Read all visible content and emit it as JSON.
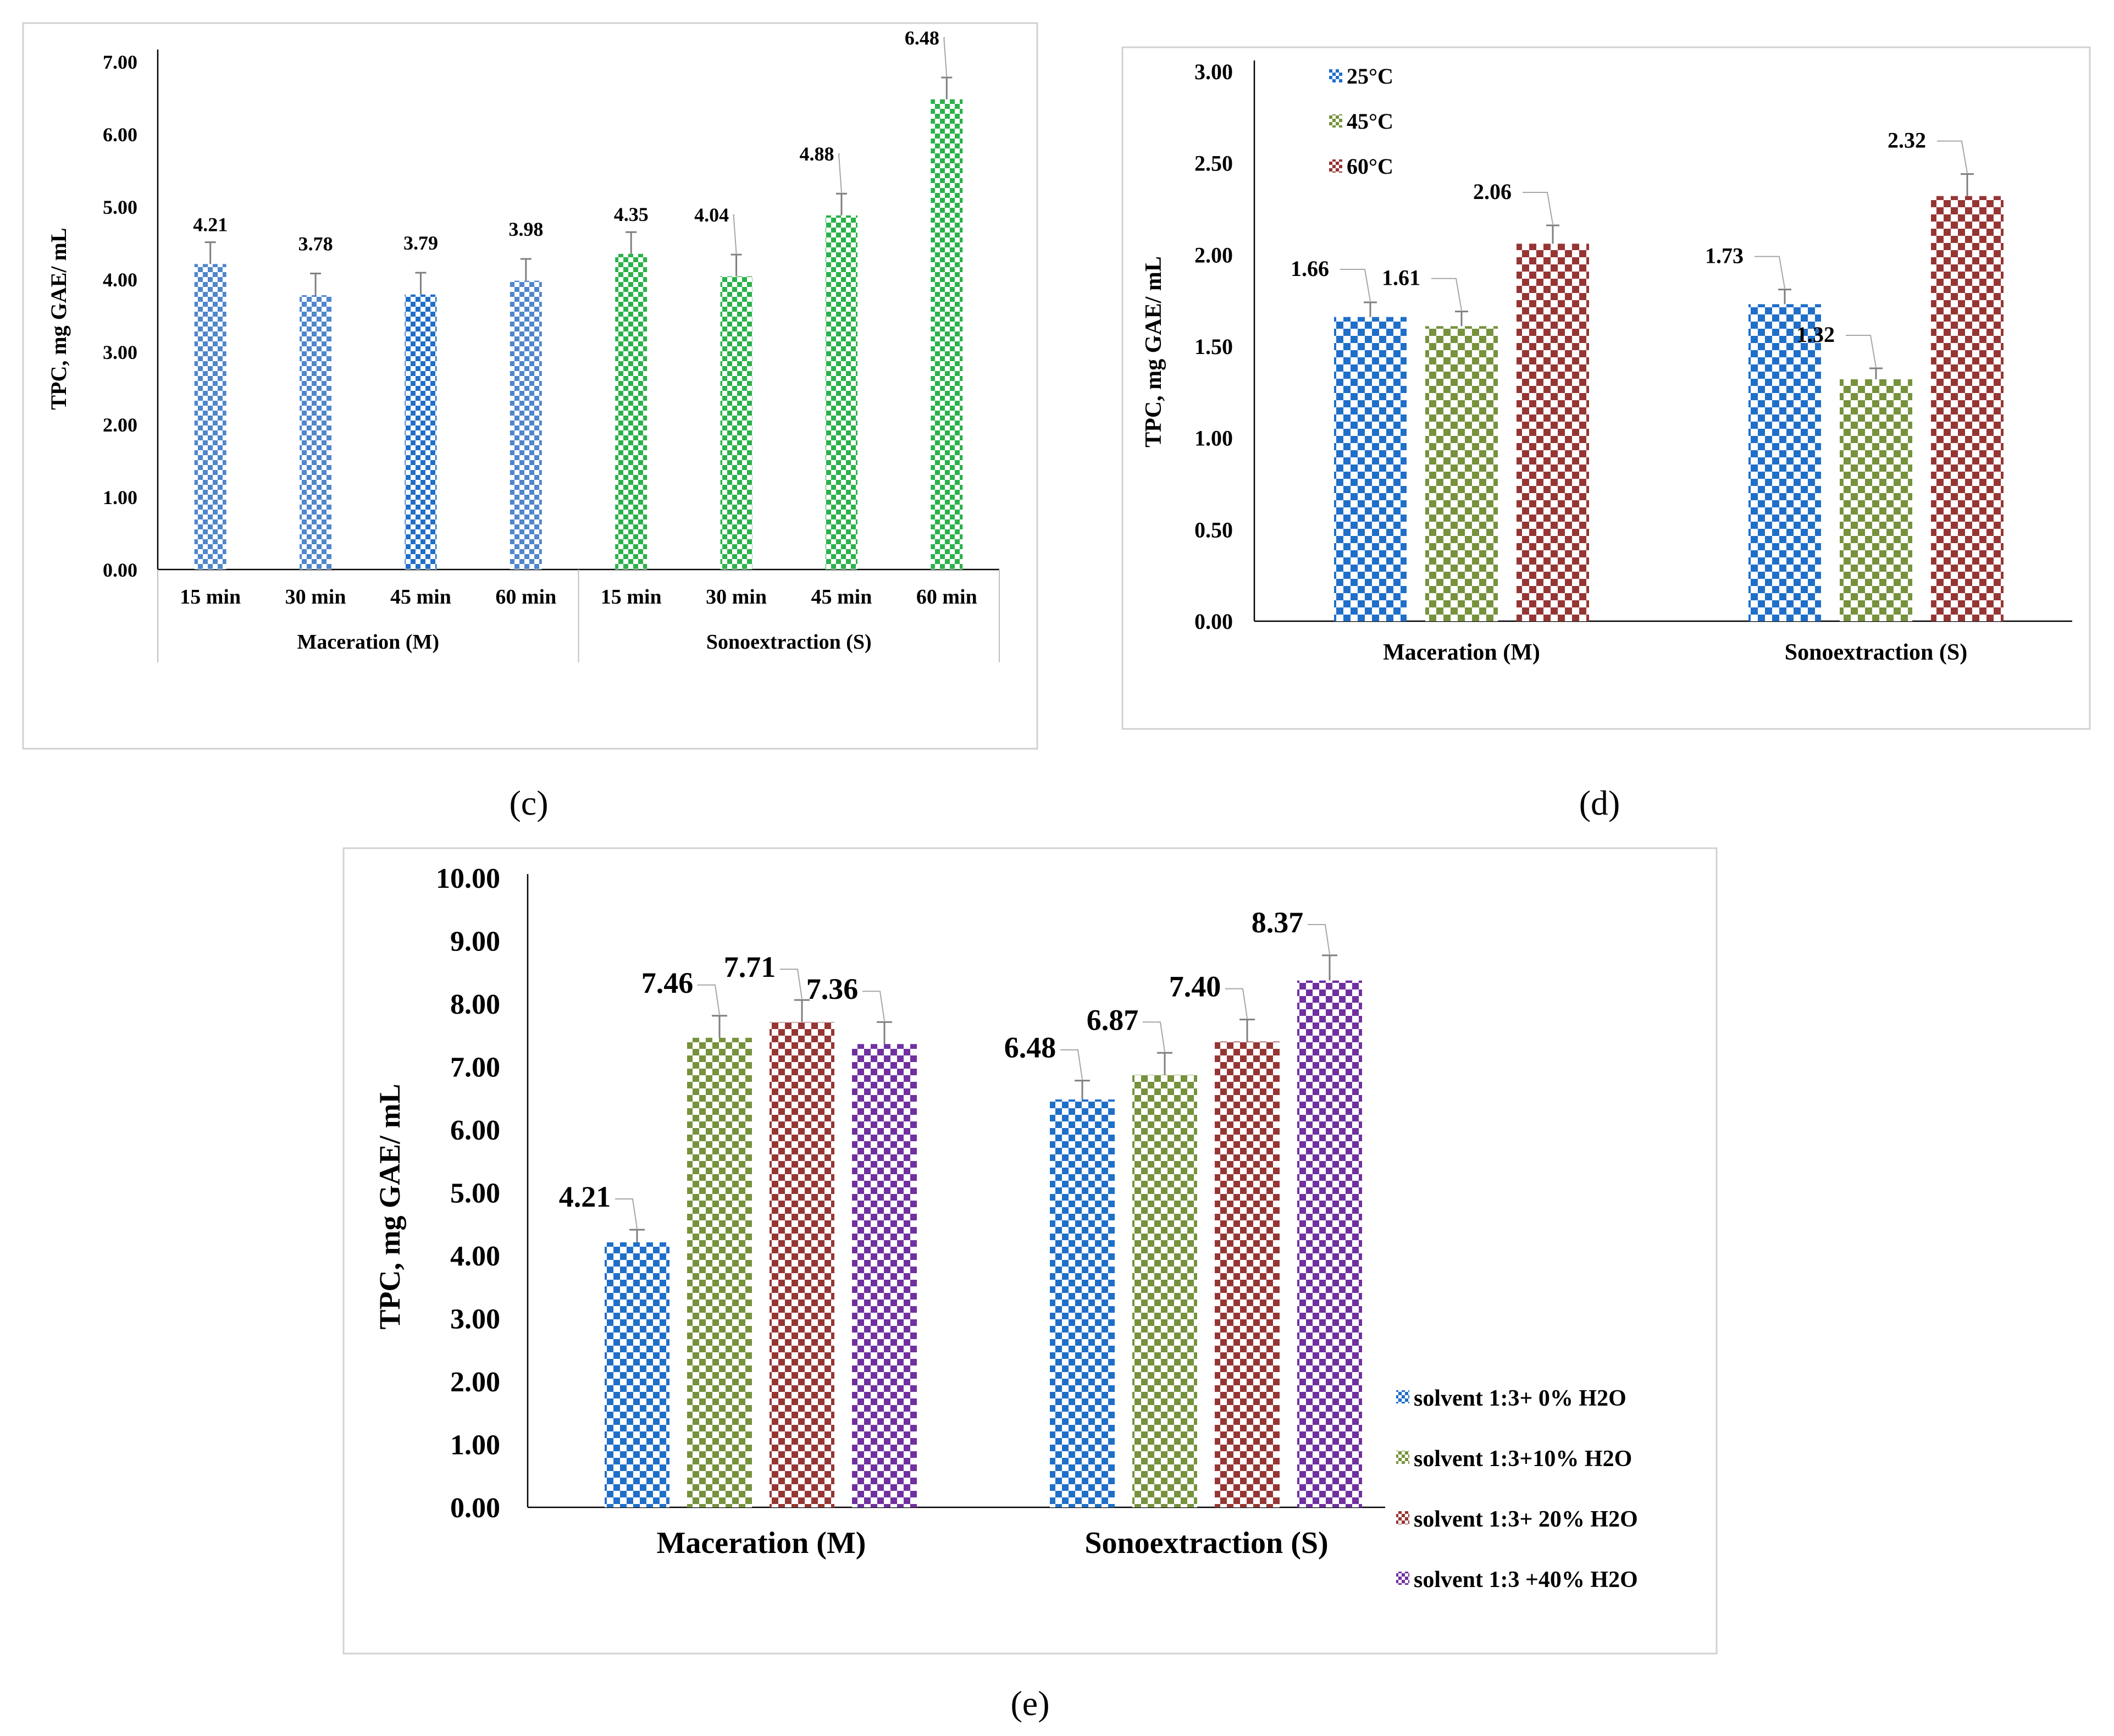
{
  "figure": {
    "captions": [
      "(c)",
      "(d)",
      "(e)"
    ]
  },
  "colors": {
    "blue": "#1f6fc9",
    "green": "#2ab24a",
    "olive": "#76923c",
    "red": "#963634",
    "purple": "#7030a0",
    "lightblue": "#4f86cc"
  },
  "chart_data": [
    {
      "panel": "c",
      "type": "bar",
      "title": "",
      "ylabel": "TPC, mg GAE/ mL",
      "ylim": [
        0,
        7
      ],
      "yticks": [
        "0.00",
        "1.00",
        "2.00",
        "3.00",
        "4.00",
        "5.00",
        "6.00",
        "7.00"
      ],
      "groups": [
        {
          "name": "Maceration (M)",
          "categories": [
            "15 min",
            "30 min",
            "45 min",
            "60 min"
          ],
          "values": [
            4.21,
            3.78,
            3.79,
            3.98
          ],
          "labels": [
            "4.21",
            "3.78",
            "3.79",
            "3.98"
          ],
          "errors": [
            0.3,
            0.3,
            0.3,
            0.3
          ],
          "colors": [
            "#4f86cc",
            "#4f86cc",
            "#1f6fc9",
            "#4f86cc"
          ]
        },
        {
          "name": "Sonoextraction (S)",
          "categories": [
            "15 min",
            "30 min",
            "45 min",
            "60 min"
          ],
          "values": [
            4.35,
            4.04,
            4.88,
            6.48
          ],
          "labels": [
            "4.35",
            "4.04",
            "4.88",
            "6.48"
          ],
          "errors": [
            0.3,
            0.3,
            0.3,
            0.3
          ],
          "colors": [
            "#2ab24a",
            "#2ab24a",
            "#2ab24a",
            "#2ab24a"
          ]
        }
      ],
      "legend": null
    },
    {
      "panel": "d",
      "type": "bar",
      "title": "",
      "ylabel": "TPC, mg GAE/ mL",
      "ylim": [
        0,
        3
      ],
      "yticks": [
        "0.00",
        "0.50",
        "1.00",
        "1.50",
        "2.00",
        "2.50",
        "3.00"
      ],
      "categories": [
        "Maceration (M)",
        "Sonoextraction (S)"
      ],
      "series": [
        {
          "name": "25°C",
          "color": "#1f6fc9",
          "values": [
            1.66,
            1.73
          ],
          "labels": [
            "1.66",
            "1.73"
          ],
          "errors": [
            0.08,
            0.08
          ]
        },
        {
          "name": "45°C",
          "color": "#76923c",
          "values": [
            1.61,
            1.32
          ],
          "labels": [
            "1.61",
            "1.32"
          ],
          "errors": [
            0.08,
            0.06
          ]
        },
        {
          "name": "60°C",
          "color": "#963634",
          "values": [
            2.06,
            2.32
          ],
          "labels": [
            "2.06",
            "2.32"
          ],
          "errors": [
            0.1,
            0.12
          ]
        }
      ],
      "legend": "top-left"
    },
    {
      "panel": "e",
      "type": "bar",
      "title": "",
      "ylabel": "TPC, mg GAE/ mL",
      "ylim": [
        0,
        10
      ],
      "yticks": [
        "0.00",
        "1.00",
        "2.00",
        "3.00",
        "4.00",
        "5.00",
        "6.00",
        "7.00",
        "8.00",
        "9.00",
        "10.00"
      ],
      "categories": [
        "Maceration (M)",
        "Sonoextraction (S)"
      ],
      "series": [
        {
          "name": "solvent 1:3+ 0% H2O",
          "color": "#1f6fc9",
          "values": [
            4.21,
            6.48
          ],
          "labels": [
            "4.21",
            "6.48"
          ],
          "errors": [
            0.2,
            0.3
          ]
        },
        {
          "name": "solvent 1:3+10% H2O",
          "color": "#76923c",
          "values": [
            7.46,
            6.87
          ],
          "labels": [
            "7.46",
            "6.87"
          ],
          "errors": [
            0.35,
            0.35
          ]
        },
        {
          "name": "solvent 1:3+ 20% H2O",
          "color": "#963634",
          "values": [
            7.71,
            7.4
          ],
          "labels": [
            "7.71",
            "7.40"
          ],
          "errors": [
            0.35,
            0.35
          ]
        },
        {
          "name": "solvent 1:3 +40% H2O",
          "color": "#7030a0",
          "values": [
            7.36,
            8.37
          ],
          "labels": [
            "7.36",
            "8.37"
          ],
          "errors": [
            0.35,
            0.4
          ]
        }
      ],
      "legend": "bottom-right"
    }
  ]
}
